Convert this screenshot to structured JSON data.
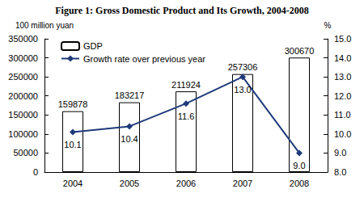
{
  "chart_data": {
    "type": "bar",
    "title": "Figure 1: Gross Domestic Product and Its Growth, 2004-2008",
    "y_label": "100 million yuan",
    "y2_label": "%",
    "categories": [
      "2004",
      "2005",
      "2006",
      "2007",
      "2008"
    ],
    "series": [
      {
        "name": "GDP",
        "type": "bar",
        "color": "#ffffff",
        "values": [
          159878,
          183217,
          211924,
          257306,
          300670
        ],
        "data_labels": true
      },
      {
        "name": "Growth rate over previous year",
        "type": "line",
        "axis": "y2",
        "color": "#1f3a7a",
        "marker": "diamond",
        "values": [
          10.1,
          10.4,
          11.6,
          13.0,
          9.0
        ],
        "value_labels": [
          "10.1",
          "10.4",
          "11.6",
          "13.0",
          "9.0"
        ],
        "data_labels": true
      }
    ],
    "ylim": [
      0,
      350000
    ],
    "yticks": [
      0,
      50000,
      100000,
      150000,
      200000,
      250000,
      300000,
      350000
    ],
    "y2lim": [
      8,
      15
    ],
    "y2ticks": [
      {
        "value": 8,
        "label": "8.0"
      },
      {
        "value": 9,
        "label": "9.0"
      },
      {
        "value": 10,
        "label": "10.0"
      },
      {
        "value": 11,
        "label": "11.0"
      },
      {
        "value": 12,
        "label": "12.0"
      },
      {
        "value": 13,
        "label": "13.0"
      },
      {
        "value": 14,
        "label": "14.0"
      },
      {
        "value": 15,
        "label": "15.0"
      }
    ],
    "grid": false,
    "legend": "upper left"
  }
}
